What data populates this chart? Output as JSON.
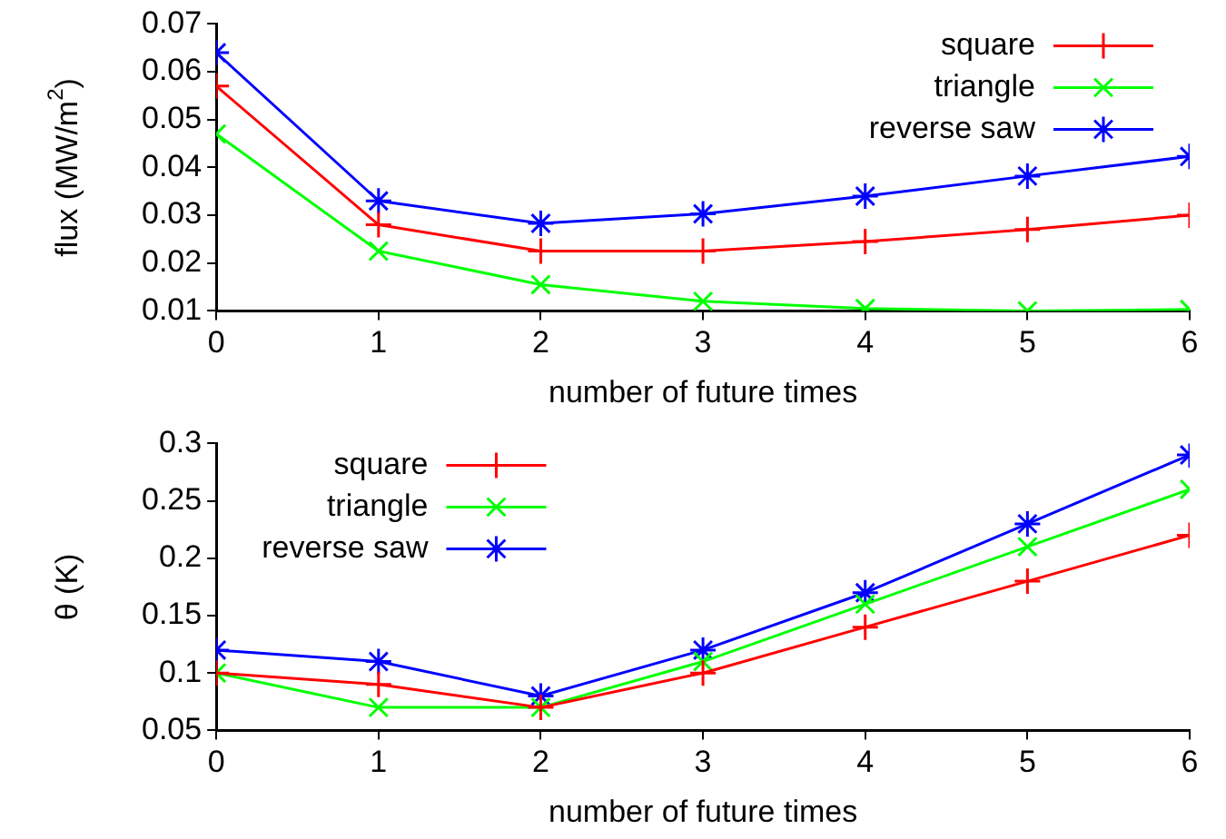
{
  "chart_data": [
    {
      "type": "line",
      "xlabel": "number of future times",
      "ylabel": "flux (MW/m$^{2}$)",
      "x": [
        0,
        1,
        2,
        3,
        4,
        5,
        6
      ],
      "xlim": [
        0,
        6
      ],
      "xticks": [
        0,
        1,
        2,
        3,
        4,
        5,
        6
      ],
      "ylim": [
        0.01,
        0.07
      ],
      "yticks": [
        0.01,
        0.02,
        0.03,
        0.04,
        0.05,
        0.06,
        0.07
      ],
      "grid": false,
      "legend": "top right",
      "line_style": "solid",
      "series": [
        {
          "name": "square",
          "color": "#ff0000",
          "marker": "plus",
          "values": [
            0.057,
            0.028,
            0.0225,
            0.0225,
            0.0245,
            0.027,
            0.03
          ]
        },
        {
          "name": "triangle",
          "color": "#00ff00",
          "marker": "x",
          "values": [
            0.047,
            0.0225,
            0.0155,
            0.012,
            0.0105,
            0.01,
            0.0103
          ]
        },
        {
          "name": "reverse saw",
          "color": "#0000ff",
          "marker": "cross",
          "values": [
            0.064,
            0.033,
            0.0283,
            0.0303,
            0.034,
            0.0382,
            0.0423
          ]
        }
      ]
    },
    {
      "type": "line",
      "xlabel": "number of future times",
      "ylabel": "θ (K)",
      "x": [
        0,
        1,
        2,
        3,
        4,
        5,
        6
      ],
      "xlim": [
        0,
        6
      ],
      "xticks": [
        0,
        1,
        2,
        3,
        4,
        5,
        6
      ],
      "ylim": [
        0.05,
        0.3
      ],
      "yticks": [
        0.05,
        0.1,
        0.15,
        0.2,
        0.25,
        0.3
      ],
      "grid": false,
      "legend": "top left",
      "line_style": "solid",
      "series": [
        {
          "name": "square",
          "color": "#ff0000",
          "marker": "plus",
          "values": [
            0.1,
            0.09,
            0.07,
            0.1,
            0.14,
            0.18,
            0.22
          ]
        },
        {
          "name": "triangle",
          "color": "#00ff00",
          "marker": "x",
          "values": [
            0.1,
            0.07,
            0.07,
            0.11,
            0.16,
            0.21,
            0.26
          ]
        },
        {
          "name": "reverse saw",
          "color": "#0000ff",
          "marker": "cross",
          "values": [
            0.12,
            0.11,
            0.08,
            0.12,
            0.17,
            0.23,
            0.29
          ]
        }
      ]
    }
  ]
}
